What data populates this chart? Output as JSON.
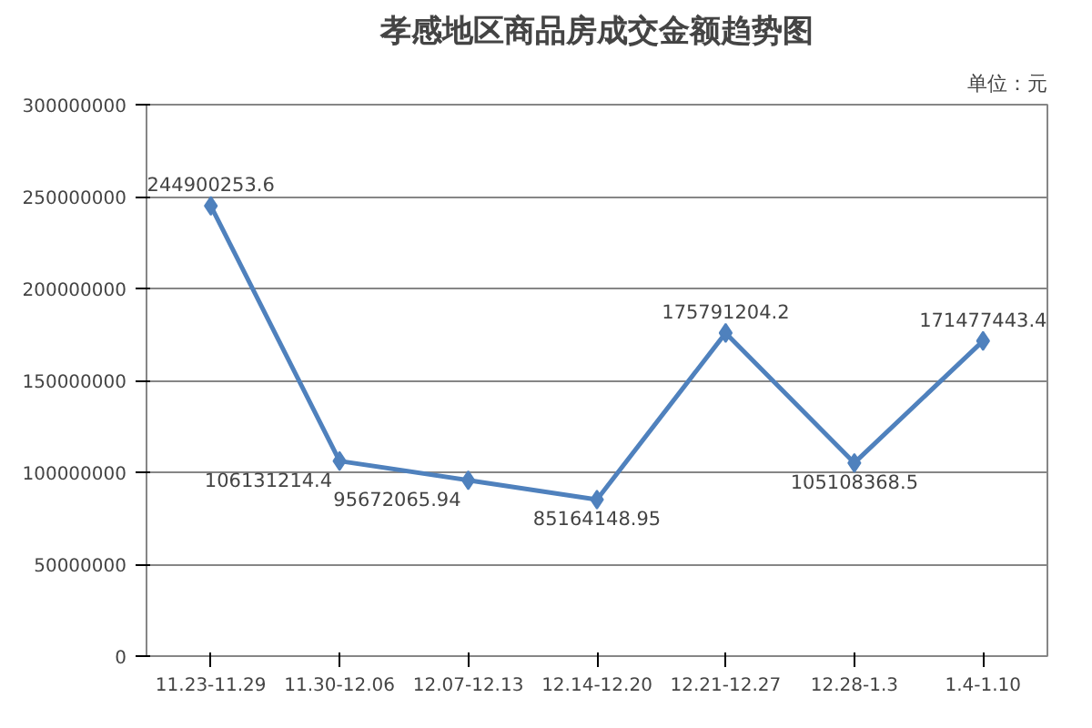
{
  "chart_data": {
    "type": "line",
    "title": "孝感地区商品房成交金额趋势图",
    "annotations": [
      "单位：元"
    ],
    "categories": [
      "11.23-11.29",
      "11.30-12.06",
      "12.07-12.13",
      "12.14-12.20",
      "12.21-12.27",
      "12.28-1.3",
      "1.4-1.10"
    ],
    "series": [
      {
        "color": "#4f81bd",
        "values": [
          244900253.6,
          106131214.4,
          95672065.94,
          85164148.95,
          175791204.2,
          105108368.5,
          171477443.4
        ]
      }
    ],
    "ylim": [
      0,
      300000000
    ],
    "yticks": [
      0,
      50000000,
      100000000,
      150000000,
      200000000,
      250000000,
      300000000
    ],
    "grid": "y",
    "marker": "diamond",
    "line_style": "solid",
    "data_labels": true
  }
}
